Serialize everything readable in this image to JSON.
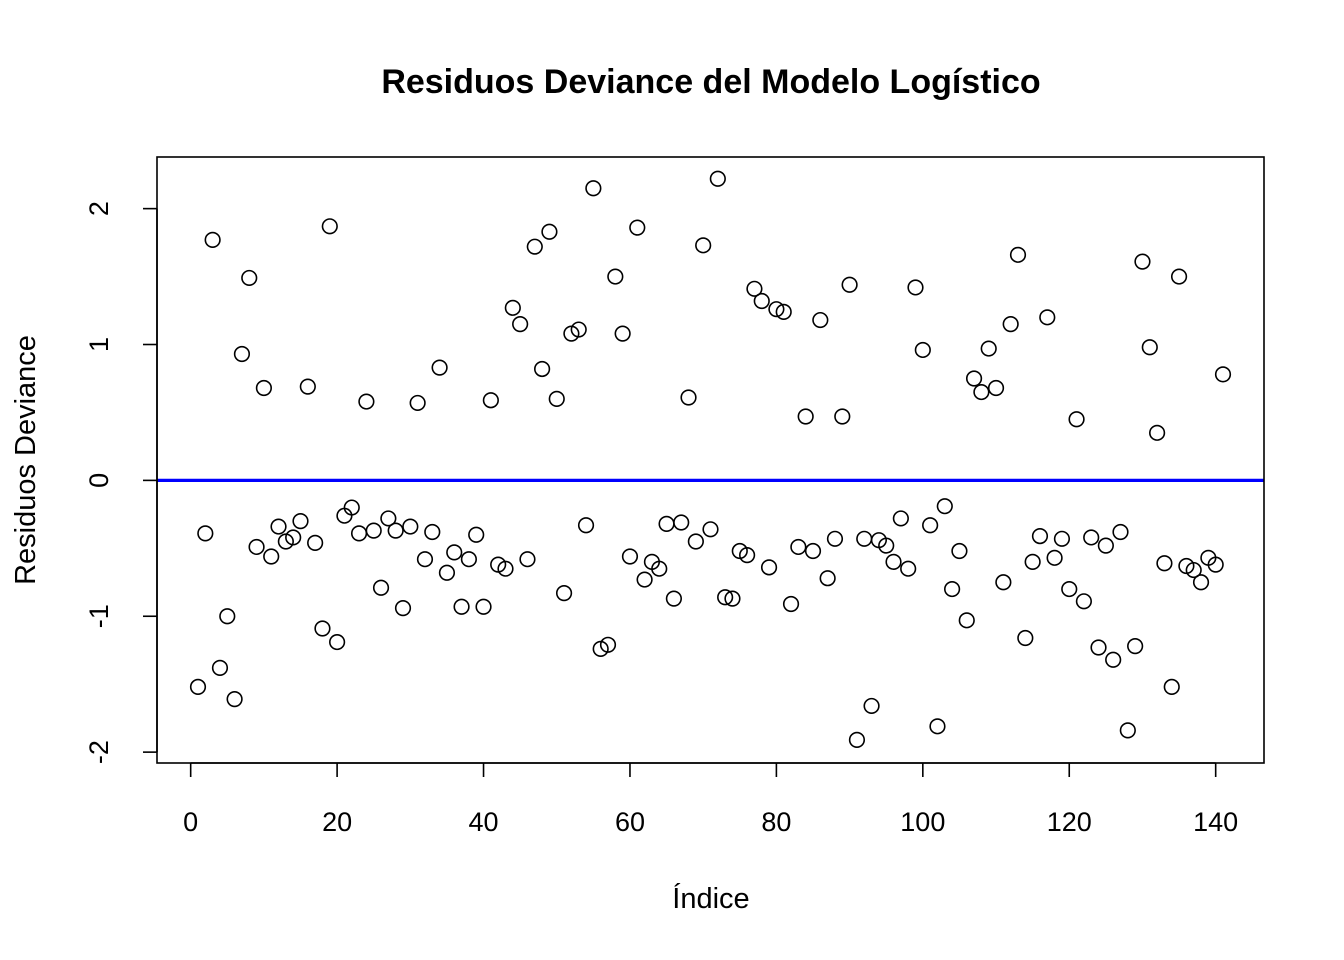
{
  "chart_data": {
    "type": "scatter",
    "title": "Residuos Deviance del Modelo Logístico",
    "xlabel": "Índice",
    "ylabel": "Residuos Deviance",
    "xlim": [
      -4.6,
      146.6
    ],
    "ylim": [
      -2.08,
      2.38
    ],
    "xticks": [
      0,
      20,
      40,
      60,
      80,
      100,
      120,
      140
    ],
    "yticks": [
      -2,
      -1,
      0,
      1,
      2
    ],
    "reference_line": {
      "y": 0,
      "color": "#0000ff"
    },
    "point_color": "#000000",
    "grid": false,
    "x": [
      1,
      2,
      3,
      4,
      5,
      6,
      7,
      8,
      9,
      10,
      11,
      12,
      13,
      14,
      15,
      16,
      17,
      18,
      19,
      20,
      21,
      22,
      23,
      24,
      25,
      26,
      27,
      28,
      29,
      30,
      31,
      32,
      33,
      34,
      35,
      36,
      37,
      38,
      39,
      40,
      41,
      42,
      43,
      44,
      45,
      46,
      47,
      48,
      49,
      50,
      51,
      52,
      53,
      54,
      55,
      56,
      57,
      58,
      59,
      60,
      61,
      62,
      63,
      64,
      65,
      66,
      67,
      68,
      69,
      70,
      71,
      72,
      73,
      74,
      75,
      76,
      77,
      78,
      79,
      80,
      81,
      82,
      83,
      84,
      85,
      86,
      87,
      88,
      89,
      90,
      91,
      92,
      93,
      94,
      95,
      96,
      97,
      98,
      99,
      100,
      101,
      102,
      103,
      104,
      105,
      106,
      107,
      108,
      109,
      110,
      111,
      112,
      113,
      114,
      115,
      116,
      117,
      118,
      119,
      120,
      121,
      122,
      123,
      124,
      125,
      126,
      127,
      128,
      129,
      130,
      131,
      132,
      133,
      134,
      135,
      136,
      137,
      138,
      139,
      140,
      141
    ],
    "y": [
      -1.52,
      -0.39,
      1.77,
      -1.38,
      -1.0,
      -1.61,
      0.93,
      1.49,
      -0.49,
      0.68,
      -0.56,
      -0.34,
      -0.45,
      -0.42,
      -0.3,
      0.69,
      -0.46,
      -1.09,
      1.87,
      -1.19,
      -0.26,
      -0.2,
      -0.39,
      0.58,
      -0.37,
      -0.79,
      -0.28,
      -0.37,
      -0.94,
      -0.34,
      0.57,
      -0.58,
      -0.38,
      0.83,
      -0.68,
      -0.53,
      -0.93,
      -0.58,
      -0.4,
      -0.93,
      0.59,
      -0.62,
      -0.65,
      1.27,
      1.15,
      -0.58,
      1.72,
      0.82,
      1.83,
      0.6,
      -0.83,
      1.08,
      1.11,
      -0.33,
      2.15,
      -1.24,
      -1.21,
      1.5,
      1.08,
      -0.56,
      1.86,
      -0.73,
      -0.6,
      -0.65,
      -0.32,
      -0.87,
      -0.31,
      0.61,
      -0.45,
      1.73,
      -0.36,
      2.22,
      -0.86,
      -0.87,
      -0.52,
      -0.55,
      1.41,
      1.32,
      -0.64,
      1.26,
      1.24,
      -0.91,
      -0.49,
      0.47,
      -0.52,
      1.18,
      -0.72,
      -0.43,
      0.47,
      1.44,
      -1.91,
      -0.43,
      -1.66,
      -0.44,
      -0.48,
      -0.6,
      -0.28,
      -0.65,
      1.42,
      0.96,
      -0.33,
      -1.81,
      -0.19,
      -0.8,
      -0.52,
      -1.03,
      0.75,
      0.65,
      0.97,
      0.68,
      -0.75,
      1.15,
      1.66,
      -1.16,
      -0.6,
      -0.41,
      1.2,
      -0.57,
      -0.43,
      -0.8,
      0.45,
      -0.89,
      -0.42,
      -1.23,
      -0.48,
      -1.32,
      -0.38,
      -1.84,
      -1.22,
      1.61,
      0.98,
      0.35,
      -0.61,
      -1.52,
      1.5,
      -0.63,
      -0.66,
      -0.75,
      -0.57,
      -0.62,
      0.78
    ]
  }
}
